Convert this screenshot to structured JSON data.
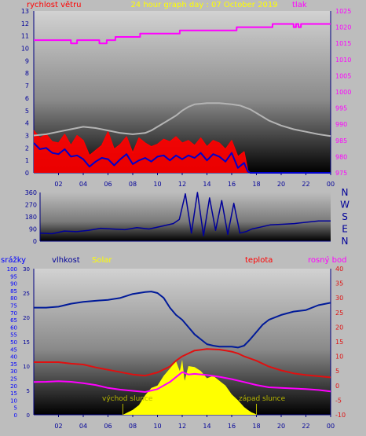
{
  "colors": {
    "background": "#bdbdbd",
    "wind_speed": "#ff0000",
    "gust": "#0000cc",
    "avg_wind": "#b4b4b4",
    "pressure": "#ff00ff",
    "direction": "#000099",
    "humidity": "#001a99",
    "temperature": "#e01010",
    "dewpoint": "#ff00ff",
    "solar": "#ffff00",
    "rain": "#0000ff",
    "title": "#ffff00",
    "tick_label": "#000099",
    "sun_label": "#b8b800"
  },
  "chart_data": [
    {
      "type": "line",
      "title": "24 hour graph day : 07 October 2019",
      "ylabel_left": "rychlost větru",
      "ylabel_right": "tlak",
      "x_ticks": [
        "02",
        "04",
        "06",
        "08",
        "10",
        "12",
        "14",
        "16",
        "18",
        "20",
        "22",
        "00"
      ],
      "x_range_hours": [
        0,
        24
      ],
      "ylim_left": [
        0,
        13
      ],
      "left_ticks": [
        "0",
        "1",
        "2",
        "3",
        "4",
        "5",
        "6",
        "7",
        "8",
        "9",
        "10",
        "11",
        "12",
        "13"
      ],
      "ylim_right": [
        975,
        1025
      ],
      "right_ticks": [
        "975",
        "980",
        "985",
        "990",
        "995",
        "1000",
        "1005",
        "1010",
        "1015",
        "1020",
        "1025"
      ],
      "grid": false,
      "series": [
        {
          "key": "pressure",
          "axis": "right",
          "x": [
            0,
            3,
            3,
            3.5,
            3.5,
            5.3,
            5.3,
            5.9,
            5.9,
            6.6,
            6.6,
            8.6,
            8.6,
            11.8,
            11.8,
            16.4,
            16.4,
            19.3,
            19.3,
            21.0,
            21.0,
            21.2,
            21.2,
            21.4,
            21.4,
            21.6,
            21.6,
            24
          ],
          "y": [
            1016,
            1016,
            1015,
            1015,
            1016,
            1016,
            1015,
            1015,
            1016,
            1016,
            1017,
            1017,
            1018,
            1018,
            1019,
            1019,
            1020,
            1020,
            1021,
            1021,
            1020,
            1020,
            1021,
            1021,
            1020,
            1020,
            1021,
            1021
          ]
        },
        {
          "key": "avg_wind",
          "axis": "left",
          "x": [
            0,
            1,
            2,
            3,
            4,
            5,
            6,
            7,
            8,
            9,
            9.5,
            10,
            10.5,
            11,
            11.5,
            12,
            12.5,
            13,
            14,
            15,
            16,
            16.7,
            17.5,
            18,
            19,
            20,
            21,
            22,
            23,
            24
          ],
          "y": [
            3.0,
            3.1,
            3.3,
            3.5,
            3.7,
            3.6,
            3.4,
            3.2,
            3.1,
            3.2,
            3.4,
            3.7,
            4.0,
            4.3,
            4.6,
            5.0,
            5.3,
            5.5,
            5.6,
            5.6,
            5.5,
            5.4,
            5.1,
            4.8,
            4.2,
            3.8,
            3.5,
            3.3,
            3.1,
            2.95
          ]
        },
        {
          "key": "wind_speed",
          "axis": "left",
          "x": [
            0,
            0.5,
            1,
            1.5,
            2,
            2.5,
            3,
            3.5,
            4,
            4.5,
            5,
            5.5,
            6,
            6.5,
            7,
            7.5,
            8,
            8.5,
            9,
            9.5,
            10,
            10.5,
            11,
            11.5,
            12,
            12.5,
            13,
            13.5,
            14,
            14.5,
            15,
            15.5,
            16,
            16.5,
            17,
            17.3,
            17.5,
            18,
            24
          ],
          "y": [
            3.4,
            2.8,
            3.1,
            2.5,
            2.4,
            3.1,
            2.2,
            3.0,
            2.6,
            1.4,
            1.8,
            2.2,
            3.3,
            1.9,
            2.3,
            2.9,
            1.6,
            2.8,
            2.4,
            2.1,
            2.3,
            2.7,
            2.5,
            2.9,
            2.4,
            2.6,
            2.2,
            2.8,
            2.1,
            2.6,
            2.4,
            1.9,
            2.6,
            1.3,
            1.7,
            0.2,
            0,
            0,
            0
          ]
        },
        {
          "key": "gust",
          "axis": "left",
          "x": [
            0,
            0.5,
            1,
            1.5,
            2,
            2.5,
            3,
            3.5,
            4,
            4.5,
            5,
            5.5,
            6,
            6.5,
            7,
            7.5,
            8,
            8.5,
            9,
            9.5,
            10,
            10.5,
            11,
            11.5,
            12,
            12.5,
            13,
            13.5,
            14,
            14.5,
            15,
            15.5,
            16,
            16.5,
            17,
            17.3,
            17.5,
            18,
            24
          ],
          "y": [
            2.4,
            1.9,
            2.0,
            1.6,
            1.5,
            1.9,
            1.3,
            1.4,
            1.1,
            0.5,
            0.9,
            1.2,
            1.1,
            0.6,
            1.1,
            1.5,
            0.7,
            1.0,
            1.2,
            0.9,
            1.3,
            1.4,
            1.0,
            1.4,
            1.1,
            1.4,
            1.2,
            1.6,
            1.0,
            1.5,
            1.3,
            0.9,
            1.6,
            0.4,
            0.8,
            0.1,
            0,
            0,
            0
          ]
        }
      ]
    },
    {
      "type": "line",
      "y_ticks": [
        "0",
        "90",
        "180",
        "270",
        "360"
      ],
      "ylim": [
        0,
        360
      ],
      "right_labels": [
        "N",
        "W",
        "S",
        "E",
        "N"
      ],
      "x_range_hours": [
        0,
        24
      ],
      "series": [
        {
          "key": "direction",
          "x": [
            0,
            1,
            2,
            3,
            4,
            5,
            6,
            7,
            8,
            9,
            10,
            11,
            11.5,
            12,
            12.5,
            13,
            13.5,
            14,
            14.5,
            15,
            15.5,
            16,
            16.5,
            17,
            17.5,
            18,
            19,
            20,
            21,
            22,
            23,
            24
          ],
          "y": [
            60,
            55,
            75,
            70,
            80,
            95,
            90,
            85,
            100,
            90,
            110,
            130,
            160,
            350,
            60,
            360,
            40,
            320,
            80,
            300,
            50,
            280,
            60,
            70,
            90,
            100,
            120,
            125,
            130,
            140,
            150,
            150
          ]
        }
      ]
    },
    {
      "type": "line",
      "ylabel_1": "srážky",
      "ylabel_2": "vlhkost",
      "ylabel_3": "Solar",
      "ylabel_right_1": "teplota",
      "ylabel_right_2": "rosný bod",
      "rain_ticks": [
        "0",
        "5",
        "10",
        "15",
        "20",
        "25",
        "30",
        "35",
        "40",
        "45",
        "50",
        "55",
        "60",
        "65",
        "70",
        "75",
        "80",
        "85",
        "90",
        "95",
        "100"
      ],
      "ylim_rain": [
        0,
        100
      ],
      "humidity_ticks": [
        "0",
        "5",
        "10",
        "15",
        "20",
        "25",
        "30"
      ],
      "ylim_humidity": [
        0,
        30
      ],
      "temp_ticks": [
        "-10",
        "-5",
        "0",
        "5",
        "10",
        "15",
        "20",
        "25",
        "30",
        "35",
        "40"
      ],
      "ylim_temp": [
        -10,
        40
      ],
      "x_ticks": [
        "02",
        "04",
        "06",
        "08",
        "10",
        "12",
        "14",
        "16",
        "18",
        "20",
        "22",
        "00"
      ],
      "x_range_hours": [
        0,
        24
      ],
      "annotations": {
        "sunrise": "východ slunce",
        "sunset": "západ slunce"
      },
      "sunrise_hour": 7.2,
      "sunset_hour": 18.0,
      "series": [
        {
          "key": "humidity",
          "axis": "humidity",
          "x": [
            0,
            1,
            2,
            3,
            4,
            5,
            6,
            7,
            8,
            9,
            9.5,
            10,
            10.5,
            11,
            11.5,
            12,
            12.5,
            13,
            13.5,
            14,
            14.5,
            15,
            15.5,
            16,
            16.5,
            17,
            17.5,
            18,
            18.5,
            19,
            20,
            21,
            22,
            23,
            24
          ],
          "y": [
            22,
            22,
            22.2,
            22.8,
            23.2,
            23.4,
            23.6,
            24,
            24.8,
            25.2,
            25.3,
            25,
            24,
            22,
            20.5,
            19.5,
            18,
            16.5,
            15.5,
            14.5,
            14.2,
            14,
            14,
            14,
            13.8,
            14.2,
            15.5,
            17,
            18.5,
            19.5,
            20.5,
            21.2,
            21.5,
            22.5,
            23
          ]
        },
        {
          "key": "temperature",
          "axis": "temp",
          "x": [
            0,
            1,
            2,
            3,
            4,
            5,
            6,
            7,
            8,
            9,
            10,
            11,
            11.5,
            12,
            12.5,
            13,
            14,
            15,
            15.5,
            16,
            16.5,
            17,
            18,
            19,
            20,
            21,
            22,
            23,
            24
          ],
          "y": [
            8,
            8,
            8,
            7.5,
            7.2,
            6.2,
            5.4,
            4.6,
            3.8,
            3.4,
            4.5,
            6.5,
            8.5,
            10,
            11,
            12,
            12.5,
            12.3,
            12,
            11.6,
            11,
            10,
            8.5,
            6.5,
            5.2,
            4.2,
            3.6,
            3.2,
            2.8
          ]
        },
        {
          "key": "dewpoint",
          "axis": "temp",
          "x": [
            0,
            1,
            2,
            3,
            4,
            5,
            6,
            7,
            8,
            9,
            10,
            11,
            12,
            12.5,
            13,
            14,
            15,
            16,
            17,
            18,
            19,
            20,
            21,
            22,
            23,
            24
          ],
          "y": [
            1.2,
            1.3,
            1.5,
            1.3,
            0.8,
            0.2,
            -0.8,
            -1.4,
            -1.8,
            -2.2,
            -1.2,
            1.2,
            4.6,
            3.8,
            4.0,
            3.6,
            3.0,
            2.2,
            1.2,
            0.2,
            -0.6,
            -0.8,
            -1.0,
            -1.2,
            -1.5,
            -2.0
          ]
        },
        {
          "key": "solar",
          "axis": "humidity",
          "x": [
            7.2,
            8,
            8.5,
            9,
            9.5,
            10,
            10.5,
            11,
            11.5,
            11.8,
            12,
            12.2,
            12.5,
            13,
            13.5,
            14,
            14.5,
            15,
            15.5,
            16,
            16.5,
            17,
            17.3,
            17.6,
            17.9,
            18.0
          ],
          "y": [
            0,
            1,
            2,
            4,
            5.5,
            6,
            8,
            9.5,
            11,
            9,
            11.3,
            7,
            10,
            9.8,
            9,
            7.5,
            8,
            7,
            6,
            4.2,
            3,
            1.6,
            1.0,
            0.5,
            0.2,
            0
          ]
        }
      ]
    }
  ]
}
